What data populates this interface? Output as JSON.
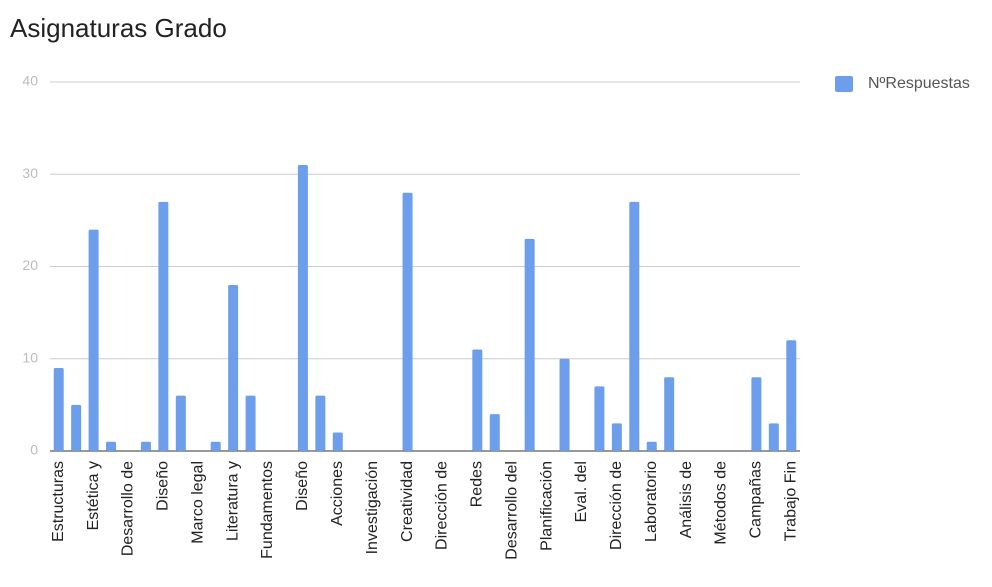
{
  "chart_data": {
    "type": "bar",
    "title": "Asignaturas Grado",
    "categories": [
      "Estructuras",
      null,
      "Estética y",
      null,
      "Desarrollo de",
      null,
      "Diseño",
      null,
      "Marco legal",
      null,
      "Literatura y",
      null,
      "Fundamentos",
      null,
      "Diseño",
      null,
      "Acciones",
      null,
      "Investigación",
      null,
      "Creatividad",
      null,
      "Dirección de",
      null,
      "Redes",
      null,
      "Desarrollo del",
      null,
      "Planificación",
      null,
      "Eval. del",
      null,
      "Dirección de",
      null,
      "Laboratorio",
      null,
      "Análisis de",
      null,
      "Métodos de",
      null,
      "Campañas",
      null,
      "Trabajo Fin"
    ],
    "series": [
      {
        "name": "NºRespuestas",
        "color": "#6d9eeb",
        "values": [
          9,
          5,
          24,
          1,
          0,
          1,
          27,
          6,
          0,
          1,
          18,
          6,
          0,
          0,
          31,
          6,
          2,
          0,
          0,
          0,
          28,
          0,
          0,
          0,
          11,
          4,
          0,
          23,
          0,
          10,
          0,
          7,
          3,
          27,
          1,
          8,
          0,
          0,
          0,
          0,
          8,
          3,
          12
        ]
      }
    ],
    "ylim": [
      0,
      40
    ],
    "yticks": [
      0,
      10,
      20,
      30,
      40
    ],
    "grid": true,
    "legend": "right"
  }
}
